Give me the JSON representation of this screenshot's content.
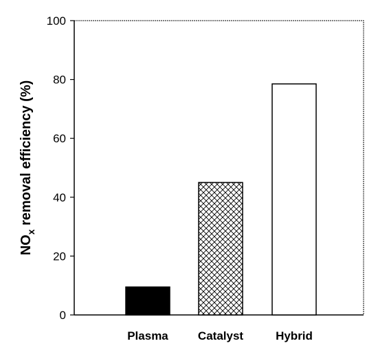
{
  "chart_data": {
    "type": "bar",
    "categories": [
      "Plasma",
      "Catalyst",
      "Hybrid"
    ],
    "values": [
      9.5,
      45,
      78.5
    ],
    "bar_styles": [
      "solid-black",
      "crosshatch",
      "white"
    ],
    "ylabel": {
      "main": "NO",
      "subscript": "x",
      "rest": " removal efficiency (%)"
    },
    "xlabel": "",
    "ylim": [
      0,
      100
    ],
    "yticks": [
      0,
      20,
      40,
      60,
      80,
      100
    ],
    "grid": false
  }
}
